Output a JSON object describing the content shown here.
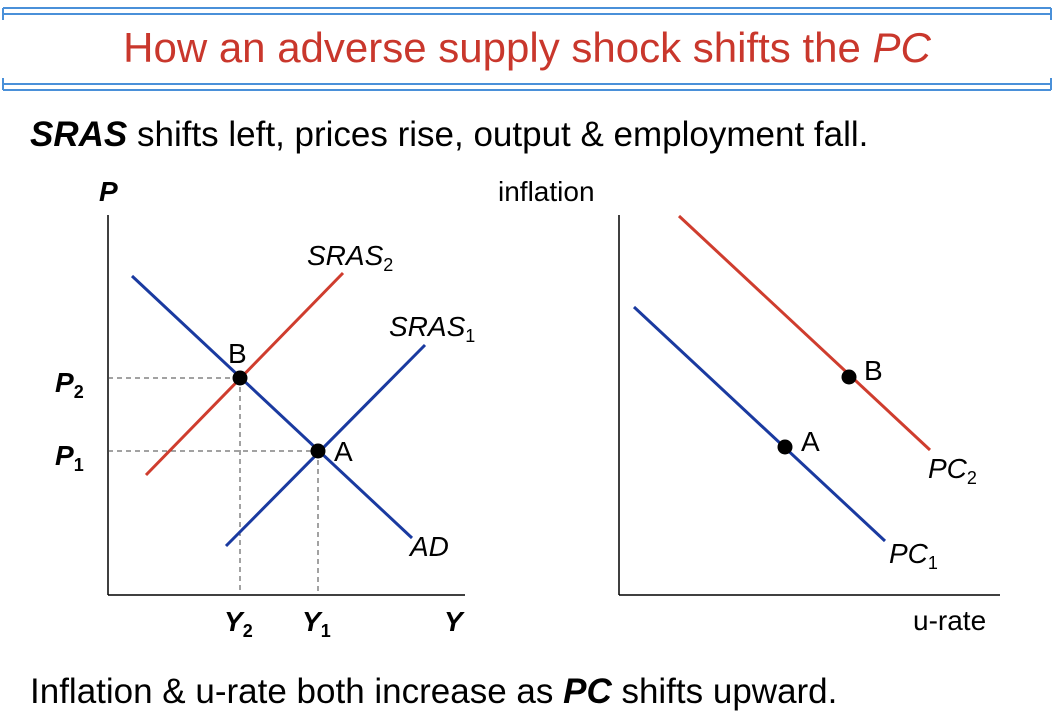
{
  "title": {
    "text_before": "How an adverse supply shock shifts the ",
    "text_italic": "PC"
  },
  "subtitle": {
    "bold": "SRAS",
    "rest": " shifts left, prices rise, output & employment fall."
  },
  "footer": {
    "before": "Inflation & u-rate both increase as ",
    "bold": "PC",
    "after": " shifts upward."
  },
  "left_diagram": {
    "y_axis_label": "P",
    "x_axis_label": "Y",
    "p2_label": "P",
    "p2_sub": "2",
    "p1_label": "P",
    "p1_sub": "1",
    "y2_label": "Y",
    "y2_sub": "2",
    "y1_label": "Y",
    "y1_sub": "1",
    "sras2_label": "SRAS",
    "sras2_sub": "2",
    "sras1_label": "SRAS",
    "sras1_sub": "1",
    "ad_label": "AD",
    "point_b": "B",
    "point_a": "A"
  },
  "right_diagram": {
    "y_axis_label": "inflation",
    "x_axis_label": "u-rate",
    "pc2_label": "PC",
    "pc2_sub": "2",
    "pc1_label": "PC",
    "pc1_sub": "1",
    "point_b": "B",
    "point_a": "A"
  },
  "colors": {
    "title": "#c9372c",
    "frame": "#4a90d9",
    "red_curve": "#cf3d2e",
    "blue_curve": "#1a3aa0"
  }
}
